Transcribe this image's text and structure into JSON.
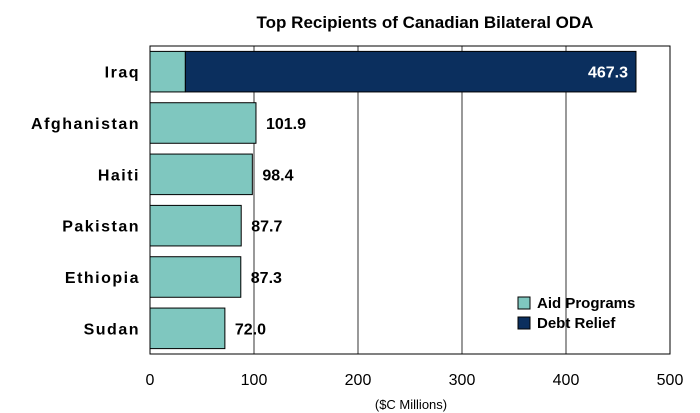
{
  "chart_data": {
    "type": "bar",
    "orientation": "horizontal",
    "stacked": true,
    "title": "Top Recipients of Canadian Bilateral ODA",
    "xlabel": "($C Millions)",
    "ylabel": "",
    "xlim": [
      0,
      500
    ],
    "xticks": [
      0,
      100,
      200,
      300,
      400,
      500
    ],
    "grid": true,
    "legend_position": "bottom-right",
    "categories": [
      "Iraq",
      "Afghanistan",
      "Haiti",
      "Pakistan",
      "Ethiopia",
      "Sudan"
    ],
    "series": [
      {
        "name": "Aid Programs",
        "color": "#7fc7bf",
        "values": [
          34,
          101.9,
          98.4,
          87.7,
          87.3,
          72.0
        ]
      },
      {
        "name": "Debt Relief",
        "color": "#0b2f5e",
        "values": [
          433.3,
          0,
          0,
          0,
          0,
          0
        ]
      }
    ],
    "data_labels": [
      "467.3",
      "101.9",
      "98.4",
      "87.7",
      "87.3",
      "72.0"
    ]
  }
}
